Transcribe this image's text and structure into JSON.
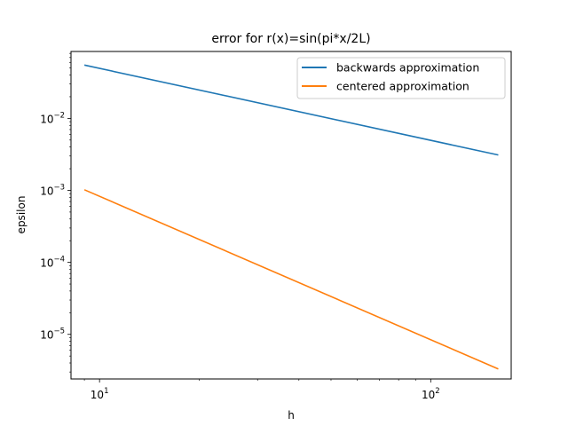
{
  "chart_data": {
    "type": "line",
    "title": "error for r(x)=sin(pi*x/2L)",
    "xlabel": "h",
    "ylabel": "epsilon",
    "xscale": "log",
    "yscale": "log",
    "xlim": [
      8.2,
      175
    ],
    "ylim": [
      2.4e-06,
      0.085
    ],
    "grid": false,
    "legend_position": "top-right",
    "x_ticks": [
      {
        "value": 10,
        "label": "10",
        "exp": "1"
      },
      {
        "value": 100,
        "label": "10",
        "exp": "2"
      }
    ],
    "y_ticks": [
      {
        "value": 0.01,
        "label": "10",
        "exp": "−2"
      },
      {
        "value": 0.001,
        "label": "10",
        "exp": "−3"
      },
      {
        "value": 0.0001,
        "label": "10",
        "exp": "−4"
      },
      {
        "value": 1e-05,
        "label": "10",
        "exp": "−5"
      }
    ],
    "series": [
      {
        "name": "backwards approximation",
        "color": "#1f77b4",
        "points": [
          [
            9,
            0.055
          ],
          [
            160,
            0.0031
          ]
        ]
      },
      {
        "name": "centered approximation",
        "color": "#ff7f0e",
        "points": [
          [
            9,
            0.00102
          ],
          [
            160,
            3.3e-06
          ]
        ]
      }
    ]
  }
}
